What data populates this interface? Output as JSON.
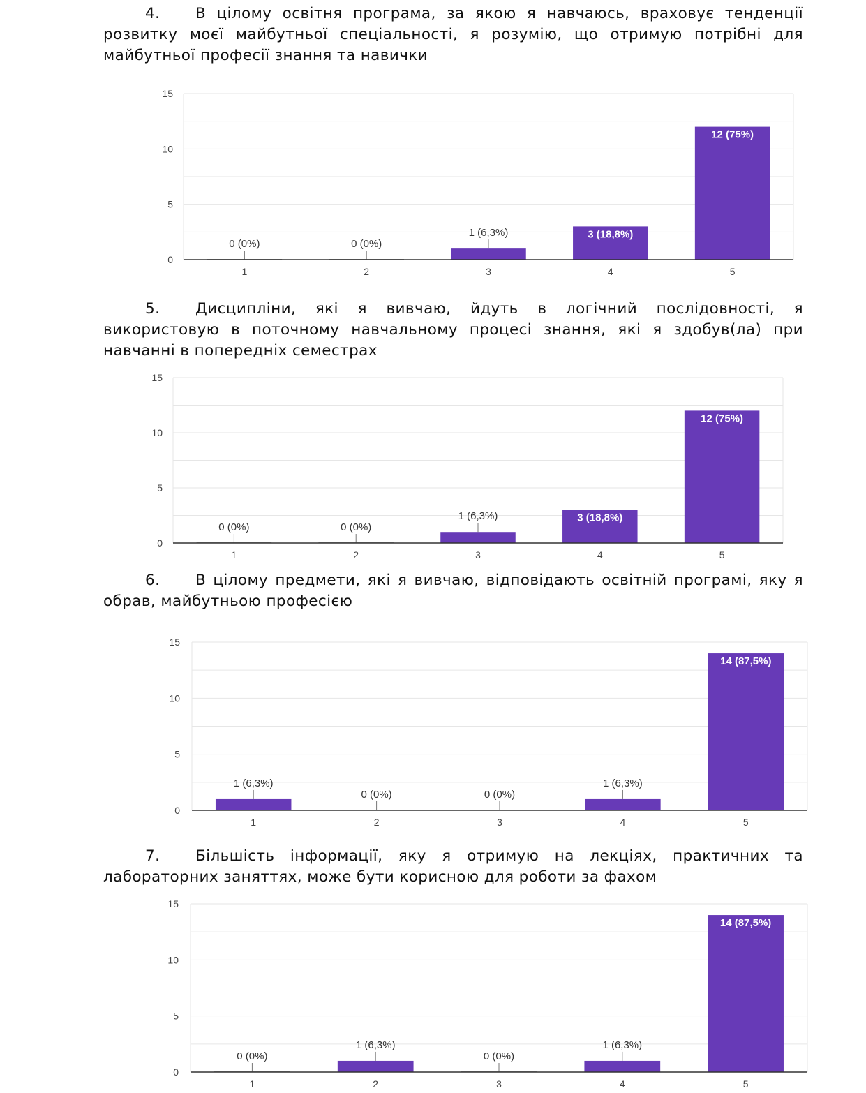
{
  "questions": [
    {
      "number": "4.",
      "text": "В цілому освітня програма, за якою я навчаюсь, враховує тенденції розвитку моєї майбутньої спеціальності, я розумію, що отримую потрібні для майбутньої професії знання та навички"
    },
    {
      "number": "5.",
      "text": "Дисципліни, які я вивчаю, йдуть в логічний послідовності, я використовую в поточному навчальному процесі знання, які я здобув(ла) при навчанні в попередніх семестрах"
    },
    {
      "number": "6.",
      "text": "В цілому предмети, які я вивчаю, відповідають освітній програмі, яку я обрав, майбутньою професією"
    },
    {
      "number": "7.",
      "text": "Більшість інформації, яку я отримую на лекціях, практичних та лабораторних заняттях, може бути корисною для роботи за фахом"
    }
  ],
  "colors": {
    "bar": "#673ab7",
    "grid": "#e6e6e6",
    "axis": "#333333"
  },
  "chart_data": [
    {
      "type": "bar",
      "title": "",
      "xlabel": "",
      "ylabel": "",
      "categories": [
        "1",
        "2",
        "3",
        "4",
        "5"
      ],
      "values": [
        0,
        0,
        1,
        3,
        12
      ],
      "labels": [
        "0 (0%)",
        "0 (0%)",
        "1 (6,3%)",
        "3 (18,8%)",
        "12 (75%)"
      ],
      "yticks": [
        "0",
        "5",
        "10",
        "15"
      ],
      "ylim": [
        0,
        15
      ]
    },
    {
      "type": "bar",
      "title": "",
      "xlabel": "",
      "ylabel": "",
      "categories": [
        "1",
        "2",
        "3",
        "4",
        "5"
      ],
      "values": [
        0,
        0,
        1,
        3,
        12
      ],
      "labels": [
        "0 (0%)",
        "0 (0%)",
        "1 (6,3%)",
        "3 (18,8%)",
        "12 (75%)"
      ],
      "yticks": [
        "0",
        "5",
        "10",
        "15"
      ],
      "ylim": [
        0,
        15
      ]
    },
    {
      "type": "bar",
      "title": "",
      "xlabel": "",
      "ylabel": "",
      "categories": [
        "1",
        "2",
        "3",
        "4",
        "5"
      ],
      "values": [
        1,
        0,
        0,
        1,
        14
      ],
      "labels": [
        "1 (6,3%)",
        "0 (0%)",
        "0 (0%)",
        "1 (6,3%)",
        "14 (87,5%)"
      ],
      "yticks": [
        "0",
        "5",
        "10",
        "15"
      ],
      "ylim": [
        0,
        15
      ]
    },
    {
      "type": "bar",
      "title": "",
      "xlabel": "",
      "ylabel": "",
      "categories": [
        "1",
        "2",
        "3",
        "4",
        "5"
      ],
      "values": [
        0,
        1,
        0,
        1,
        14
      ],
      "labels": [
        "0 (0%)",
        "1 (6,3%)",
        "0 (0%)",
        "1 (6,3%)",
        "14 (87,5%)"
      ],
      "yticks": [
        "0",
        "5",
        "10",
        "15"
      ],
      "ylim": [
        0,
        15
      ]
    }
  ]
}
